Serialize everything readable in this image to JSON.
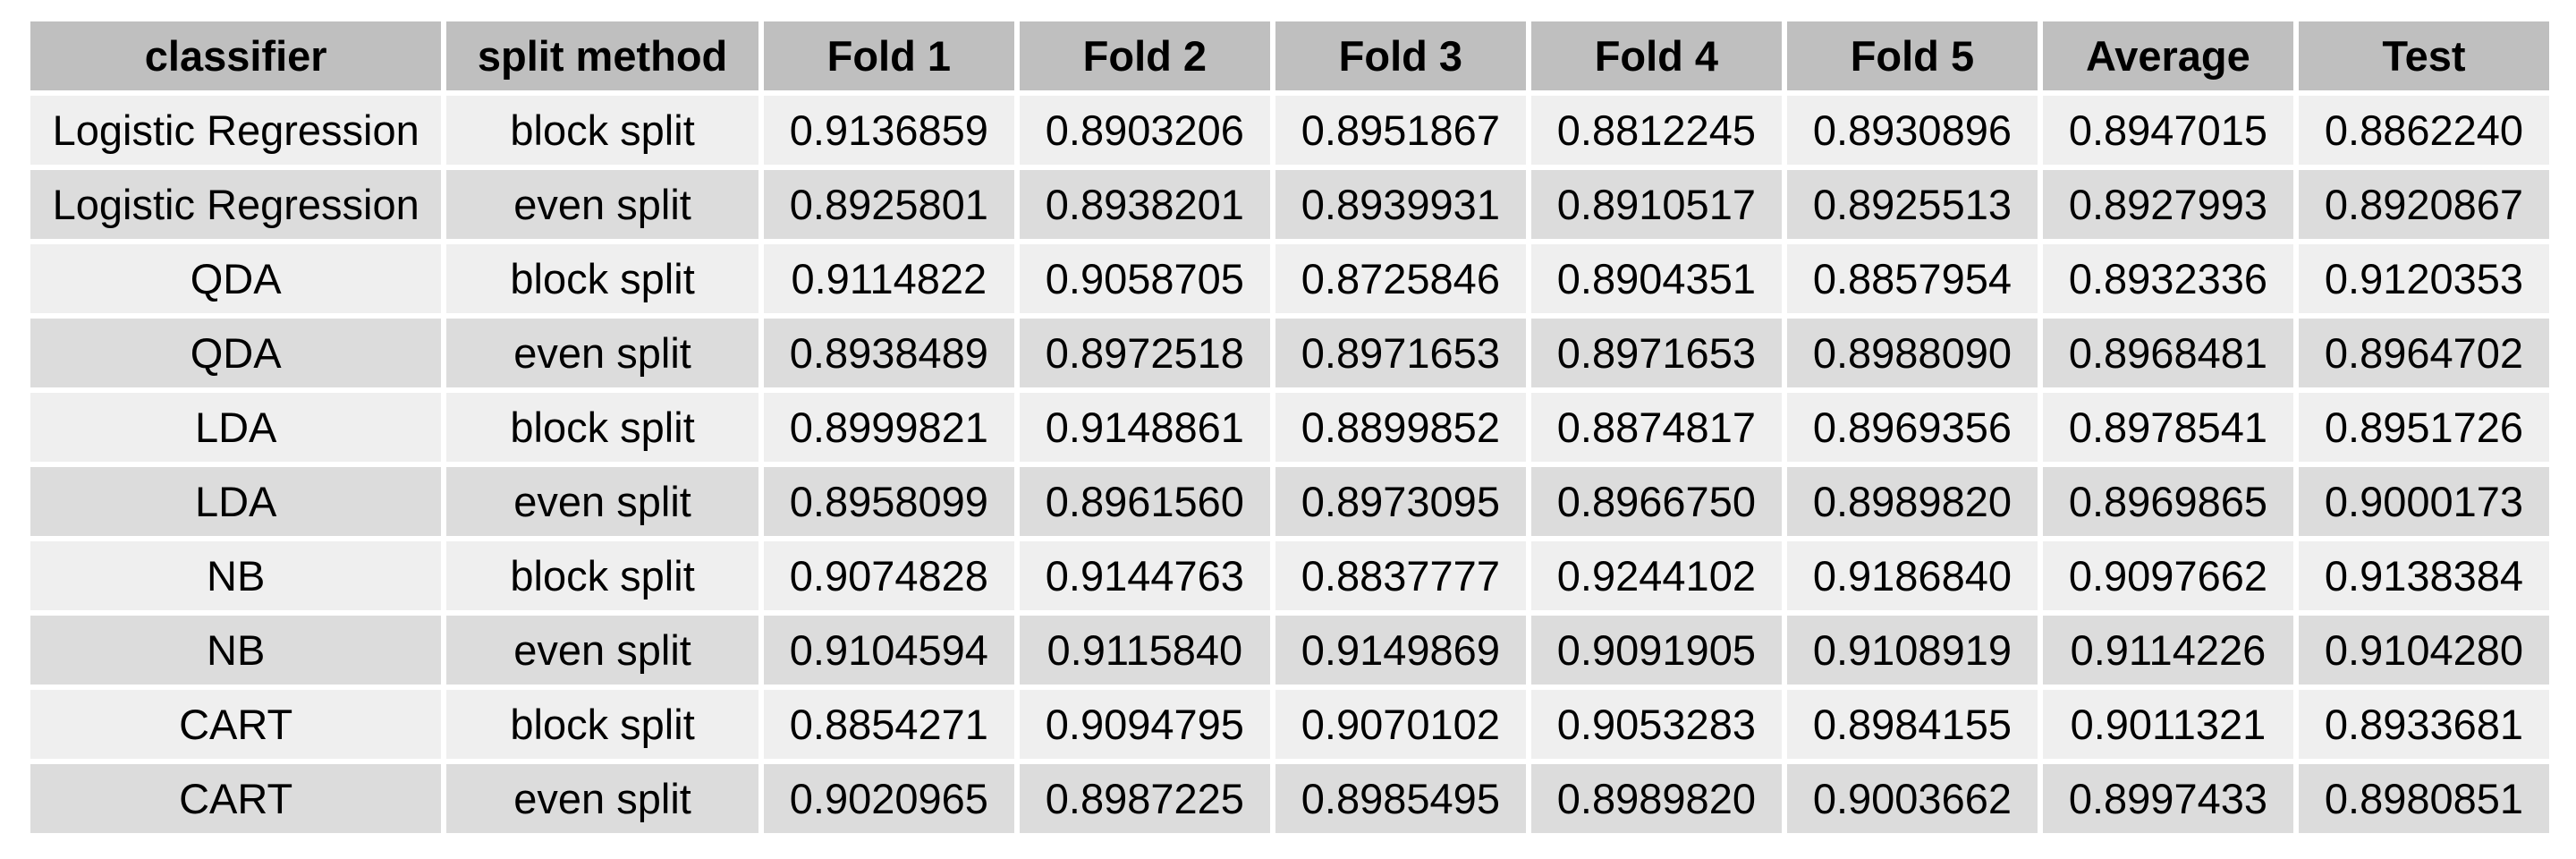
{
  "chart_data": {
    "type": "table",
    "columns": [
      "classifier",
      "split method",
      "Fold 1",
      "Fold 2",
      "Fold 3",
      "Fold 4",
      "Fold 5",
      "Average",
      "Test"
    ],
    "rows": [
      [
        "Logistic Regression",
        "block split",
        "0.9136859",
        "0.8903206",
        "0.8951867",
        "0.8812245",
        "0.8930896",
        "0.8947015",
        "0.8862240"
      ],
      [
        "Logistic Regression",
        "even split",
        "0.8925801",
        "0.8938201",
        "0.8939931",
        "0.8910517",
        "0.8925513",
        "0.8927993",
        "0.8920867"
      ],
      [
        "QDA",
        "block split",
        "0.9114822",
        "0.9058705",
        "0.8725846",
        "0.8904351",
        "0.8857954",
        "0.8932336",
        "0.9120353"
      ],
      [
        "QDA",
        "even split",
        "0.8938489",
        "0.8972518",
        "0.8971653",
        "0.8971653",
        "0.8988090",
        "0.8968481",
        "0.8964702"
      ],
      [
        "LDA",
        "block split",
        "0.8999821",
        "0.9148861",
        "0.8899852",
        "0.8874817",
        "0.8969356",
        "0.8978541",
        "0.8951726"
      ],
      [
        "LDA",
        "even split",
        "0.8958099",
        "0.8961560",
        "0.8973095",
        "0.8966750",
        "0.8989820",
        "0.8969865",
        "0.9000173"
      ],
      [
        "NB",
        "block split",
        "0.9074828",
        "0.9144763",
        "0.8837777",
        "0.9244102",
        "0.9186840",
        "0.9097662",
        "0.9138384"
      ],
      [
        "NB",
        "even split",
        "0.9104594",
        "0.9115840",
        "0.9149869",
        "0.9091905",
        "0.9108919",
        "0.9114226",
        "0.9104280"
      ],
      [
        "CART",
        "block split",
        "0.8854271",
        "0.9094795",
        "0.9070102",
        "0.9053283",
        "0.8984155",
        "0.9011321",
        "0.8933681"
      ],
      [
        "CART",
        "even split",
        "0.9020965",
        "0.8987225",
        "0.8985495",
        "0.8989820",
        "0.9003662",
        "0.8997433",
        "0.8980851"
      ]
    ]
  },
  "colors": {
    "header_bg": "#bfbfbf",
    "row_light": "#efefef",
    "row_dark": "#dcdcdc"
  }
}
